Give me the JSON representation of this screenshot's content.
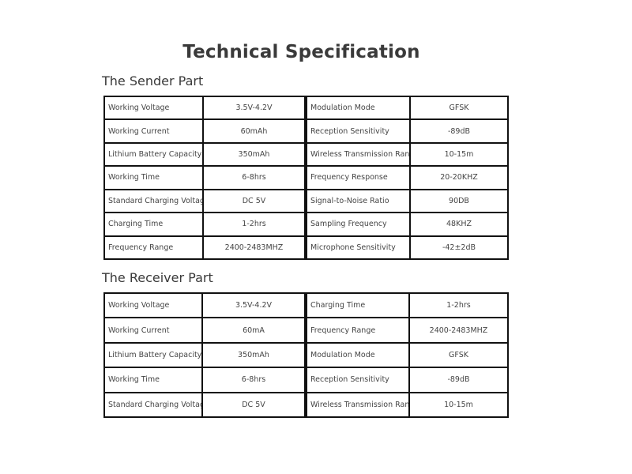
{
  "title": "Technical Specification",
  "sender": {
    "heading": "The Sender Part",
    "rows": [
      [
        "Working Voltage",
        "3.5V-4.2V",
        "Modulation Mode",
        "GFSK"
      ],
      [
        "Working Current",
        "60mAh",
        "Reception Sensitivity",
        "-89dB"
      ],
      [
        "Lithium Battery Capacity",
        "350mAh",
        "Wireless Transmission Range",
        "10-15m"
      ],
      [
        "Working Time",
        "6-8hrs",
        "Frequency Response",
        "20-20KHZ"
      ],
      [
        "Standard Charging Voltage",
        "DC 5V",
        "Signal-to-Noise Ratio",
        "90DB"
      ],
      [
        "Charging Time",
        "1-2hrs",
        "Sampling Frequency",
        "48KHZ"
      ],
      [
        "Frequency Range",
        "2400-2483MHZ",
        "Microphone Sensitivity",
        "-42±2dB"
      ]
    ]
  },
  "receiver": {
    "heading": "The Receiver Part",
    "rows": [
      [
        "Working Voltage",
        "3.5V-4.2V",
        "Charging Time",
        "1-2hrs"
      ],
      [
        "Working Current",
        "60mA",
        "Frequency Range",
        "2400-2483MHZ"
      ],
      [
        "Lithium Battery Capacity",
        "350mAh",
        "Modulation Mode",
        "GFSK"
      ],
      [
        "Working Time",
        "6-8hrs",
        "Reception Sensitivity",
        "-89dB"
      ],
      [
        "Standard Charging Voltage",
        "DC 5V",
        "Wireless Transmission Range",
        "10-15m"
      ]
    ]
  }
}
